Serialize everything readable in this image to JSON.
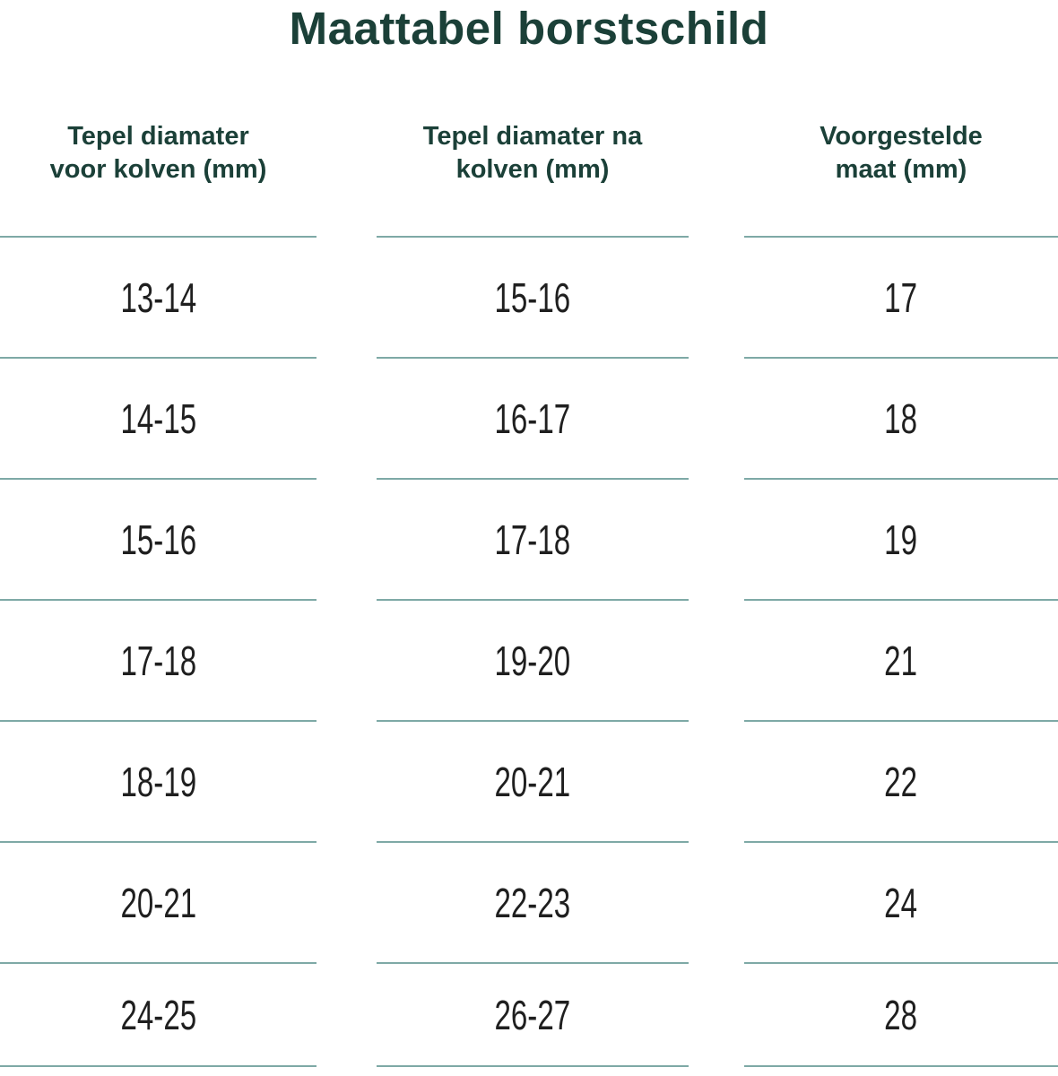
{
  "title": "Maattabel borstschild",
  "header": {
    "columns": [
      {
        "line1": "Tepel diamater",
        "line2": "voor kolven (mm)"
      },
      {
        "line1": "Tepel diamater na",
        "line2": "kolven (mm)"
      },
      {
        "line1": "Voorgestelde",
        "line2": "maat (mm)"
      }
    ]
  },
  "chart_data": {
    "type": "table",
    "title": "Maattabel borstschild",
    "columns": [
      "Tepel diamater voor kolven (mm)",
      "Tepel diamater na kolven (mm)",
      "Voorgestelde maat (mm)"
    ],
    "rows": [
      [
        "13-14",
        "15-16",
        "17"
      ],
      [
        "14-15",
        "16-17",
        "18"
      ],
      [
        "15-16",
        "17-18",
        "19"
      ],
      [
        "17-18",
        "19-20",
        "21"
      ],
      [
        "18-19",
        "20-21",
        "22"
      ],
      [
        "20-21",
        "22-23",
        "24"
      ],
      [
        "24-25",
        "26-27",
        "28"
      ]
    ]
  },
  "colors": {
    "heading_green": "#1b4038",
    "divider_teal": "#7ea9a6",
    "value_text": "#1f1f1f",
    "background": "#ffffff"
  }
}
